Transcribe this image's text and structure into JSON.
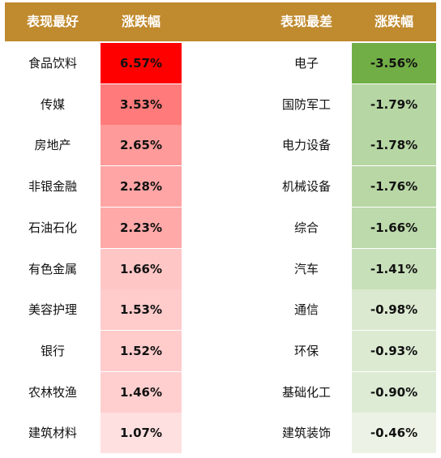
{
  "header": {
    "best_label": "表现最好",
    "best_change_label": "涨跌幅",
    "worst_label": "表现最差",
    "worst_change_label": "涨跌幅"
  },
  "best": [
    {
      "name": "食品饮料",
      "change": "6.57%",
      "bg": "#fe0000"
    },
    {
      "name": "传媒",
      "change": "3.53%",
      "bg": "#ff7a7a"
    },
    {
      "name": "房地产",
      "change": "2.65%",
      "bg": "#ff9a9a"
    },
    {
      "name": "非银金融",
      "change": "2.28%",
      "bg": "#ffa5a5"
    },
    {
      "name": "石油石化",
      "change": "2.23%",
      "bg": "#ffa9a9"
    },
    {
      "name": "有色金属",
      "change": "1.66%",
      "bg": "#ffc6c6"
    },
    {
      "name": "美容护理",
      "change": "1.53%",
      "bg": "#ffcbcb"
    },
    {
      "name": "银行",
      "change": "1.52%",
      "bg": "#ffcbcb"
    },
    {
      "name": "农林牧渔",
      "change": "1.46%",
      "bg": "#ffcfcf"
    },
    {
      "name": "建筑材料",
      "change": "1.07%",
      "bg": "#ffe0e0"
    }
  ],
  "worst": [
    {
      "name": "电子",
      "change": "-3.56%",
      "bg": "#71ae46"
    },
    {
      "name": "国防军工",
      "change": "-1.79%",
      "bg": "#b6d6a3"
    },
    {
      "name": "电力设备",
      "change": "-1.78%",
      "bg": "#b6d6a3"
    },
    {
      "name": "机械设备",
      "change": "-1.76%",
      "bg": "#b8d7a5"
    },
    {
      "name": "综合",
      "change": "-1.66%",
      "bg": "#bcdaab"
    },
    {
      "name": "汽车",
      "change": "-1.41%",
      "bg": "#c8e0b9"
    },
    {
      "name": "通信",
      "change": "-0.98%",
      "bg": "#dbe9d0"
    },
    {
      "name": "环保",
      "change": "-0.93%",
      "bg": "#dcead2"
    },
    {
      "name": "基础化工",
      "change": "-0.90%",
      "bg": "#ddebd4"
    },
    {
      "name": "建筑装饰",
      "change": "-0.46%",
      "bg": "#ecf3e6"
    }
  ]
}
